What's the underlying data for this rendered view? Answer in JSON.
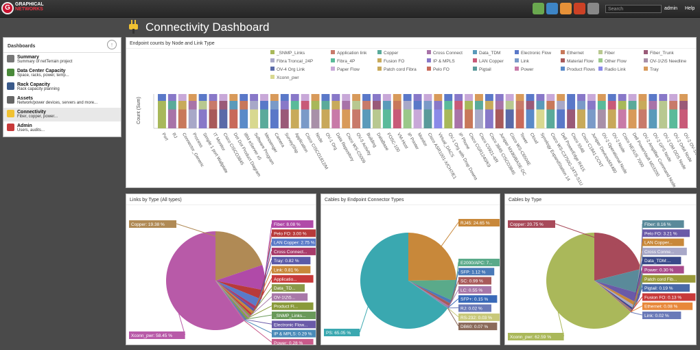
{
  "app": {
    "logo_line1": "GRAPHICAL",
    "logo_line2": "NETWORKS",
    "search_placeholder": "Search",
    "user": "admin",
    "help": "Help"
  },
  "nav": {
    "heading": "Dashboards",
    "items": [
      {
        "title": "Summary",
        "sub": "Summary of netTerrain project",
        "icon": "summary-icon"
      },
      {
        "title": "Data Center Capacity",
        "sub": "Space, racks, power, temp...",
        "icon": "datacenter-icon"
      },
      {
        "title": "Rack Capacity",
        "sub": "Rack capacity planning",
        "icon": "rack-icon"
      },
      {
        "title": "Assets",
        "sub": "Network/power devices, servers and more...",
        "icon": "assets-icon"
      },
      {
        "title": "Connectivity",
        "sub": "Fiber, copper, power...",
        "icon": "connectivity-icon"
      },
      {
        "title": "Admin",
        "sub": "Users, audits...",
        "icon": "admin-icon"
      }
    ]
  },
  "page_title": "Connectivity Dashboard",
  "chart_data": [
    {
      "type": "bar",
      "title": "Endpoint counts by Node and Link Type",
      "ylabel": "Count (Sum)",
      "legend": [
        "_SNMP_Links",
        "Application link",
        "Copper",
        "Cross Connect",
        "Data_TDM",
        "Electronic Flow",
        "Ethernet",
        "Fiber",
        "Fiber_Trunk",
        "Fibra Troncal_24P",
        "Fibra_4P",
        "Fusion FO",
        "IP & MPLS",
        "LAN Copper",
        "Link",
        "Material Flow",
        "Other Flow",
        "OV-1\\2\\5 Needline",
        "OV-4 Org Link",
        "Paper Flow",
        "Patch cord Fibra",
        "Pelo FO",
        "Pigtail",
        "Power",
        "Product Flows",
        "Radio Link",
        "Tray",
        "Xconn_pwr"
      ],
      "legend_colors": [
        "#a8b85a",
        "#c87a6a",
        "#5aaa9a",
        "#a873a8",
        "#5a9aba",
        "#5a78c8",
        "#c8785a",
        "#b8c890",
        "#9a5a78",
        "#a8a8c8",
        "#5aba9a",
        "#c8aa5a",
        "#8878c8",
        "#c85a78",
        "#7a9ac8",
        "#a85a5a",
        "#9ac88a",
        "#a890a8",
        "#5a6aa8",
        "#c8a8d8",
        "#c8a85a",
        "#c86a5a",
        "#5a9a9a",
        "#c87aa8",
        "#5a8ac8",
        "#8a8ae8",
        "#d89a5a",
        "#d8d890"
      ],
      "categories": [
        "Port",
        "RJ",
        "Connector_Generic",
        "Process",
        "Simple 1 port Wallplate",
        "IT Monitor",
        "Cisco CISCO3845",
        "Dot Dot Product Diagram",
        "IBM eServer x5",
        "Software Program",
        "Messenger",
        "Camera",
        "SurveyShip",
        "Application",
        "Cisco CISCO1812/M",
        "Node",
        "OV-1 Org",
        "Data Repository",
        "Cisco WS-C5009",
        "OV-5 Activity",
        "Building",
        "DataBase",
        "FOSC-100",
        "VM-Host",
        "IP Printer",
        "Monitor",
        "Cisco ASR1001-X/CH7/E1",
        "Virtual_DACS",
        "OV-1 Org with Drop Downs",
        "IP Phone",
        "Cisco CGR1240/K9",
        "Cisco C5921-4/R",
        "Cisco 3845 CISCO3845",
        "Juniper MX80/BASE-DC",
        "Cisco WS-C6504E",
        "Tower",
        "Cloud",
        "Synology ExpandStation 14",
        "Cisco WS-C3750G-24TS-S1U",
        "Dell PowerEdge R415",
        "Cisco 5548",
        "Cisco C1841 CCNT",
        "Juniper DevicesMX480",
        "OV-2 Operational Node",
        "OV-2 Node",
        "Cisco NEXUS 7000",
        "Dell PowerVault MD3200",
        "OV-2 Amplifier Command Node",
        "OV-2 GPS Node",
        "OV-2 OM ODS Node",
        "OV-2 Orbit Node",
        "OV-2 OV-1/S Node"
      ]
    },
    {
      "type": "pie",
      "title": "Links by Type (All types)",
      "slices": [
        {
          "label": "Copper: 19.38 %",
          "value": 19.38,
          "color": "#b08a55"
        },
        {
          "label": "Fiber: 8.08 %",
          "value": 8.08,
          "color": "#b04aa8"
        },
        {
          "label": "Pelo FO: 3.00 %",
          "value": 3.0,
          "color": "#b83a3a"
        },
        {
          "label": "LAN Copper: 2.75 %",
          "value": 2.75,
          "color": "#5a7ac8"
        },
        {
          "label": "Cross Connect...",
          "value": 1.0,
          "color": "#a83a6a"
        },
        {
          "label": "Tray: 0.82 %",
          "value": 0.82,
          "color": "#5a5aa8"
        },
        {
          "label": "Link: 0.81 %",
          "value": 0.81,
          "color": "#c8883a"
        },
        {
          "label": "Applicatio...",
          "value": 0.7,
          "color": "#c83a3a"
        },
        {
          "label": "Data_TD...",
          "value": 0.6,
          "color": "#8a9a4a"
        },
        {
          "label": "OV-1\\2\\5...",
          "value": 0.5,
          "color": "#a878a8"
        },
        {
          "label": "Product Fl...",
          "value": 0.45,
          "color": "#8a9a3a"
        },
        {
          "label": "_SNMP_Links...",
          "value": 0.35,
          "color": "#6a9a5a"
        },
        {
          "label": "Electronic Flow...",
          "value": 0.3,
          "color": "#6a5aa8"
        },
        {
          "label": "IP & MPLS: 0.29 %",
          "value": 0.29,
          "color": "#4a8ab8"
        },
        {
          "label": "Power: 0.28 %",
          "value": 0.28,
          "color": "#c85a8a"
        },
        {
          "label": "Xconn_pwr: 58.45 %",
          "value": 58.45,
          "color": "#b85aa8"
        }
      ]
    },
    {
      "type": "pie",
      "title": "Cables by Endpoint Connector Types",
      "slices": [
        {
          "label": "RJ45: 24.65 %",
          "value": 24.65,
          "color": "#c8883a"
        },
        {
          "label": "E2000/APC: 7...",
          "value": 7.0,
          "color": "#5aaa8a"
        },
        {
          "label": "SFP: 1.12 %",
          "value": 1.12,
          "color": "#4a7ab8"
        },
        {
          "label": "SC: 0.99 %",
          "value": 0.99,
          "color": "#a85a5a"
        },
        {
          "label": "LC: 0.55 %",
          "value": 0.55,
          "color": "#a878a8"
        },
        {
          "label": "SFP+: 0.15 %",
          "value": 0.15,
          "color": "#3a6ab8"
        },
        {
          "label": "RJ: 0.02 %",
          "value": 0.02,
          "color": "#6a7ab8"
        },
        {
          "label": "RS-232: 0.03 %",
          "value": 0.03,
          "color": "#c8c87a"
        },
        {
          "label": "DB60: 0.07 %",
          "value": 0.07,
          "color": "#8a6a5a"
        },
        {
          "label": "PS: 65.05 %",
          "value": 65.05,
          "color": "#3aa8b0"
        }
      ]
    },
    {
      "type": "pie",
      "title": "Cables by Type",
      "slices": [
        {
          "label": "Copper: 20.75 %",
          "value": 20.75,
          "color": "#a84a5a"
        },
        {
          "label": "Fiber: 8.16 %",
          "value": 8.16,
          "color": "#5a8a9a"
        },
        {
          "label": "Pelo FO: 3.21 %",
          "value": 3.21,
          "color": "#6a5aa8"
        },
        {
          "label": "LAN Copper...",
          "value": 1.2,
          "color": "#c8883a"
        },
        {
          "label": "Cross Conne...",
          "value": 0.9,
          "color": "#a8a8c8"
        },
        {
          "label": "Data_TDM:...",
          "value": 0.6,
          "color": "#3a4a8a"
        },
        {
          "label": "Power: 0.30 %",
          "value": 0.3,
          "color": "#a84a8a"
        },
        {
          "label": "Patch cord Fib...",
          "value": 0.25,
          "color": "#9a9a3a"
        },
        {
          "label": "Pigtail: 0.19 %",
          "value": 0.19,
          "color": "#4a6aa8"
        },
        {
          "label": "Fusion FO: 0.13 %",
          "value": 0.13,
          "color": "#c83a3a"
        },
        {
          "label": "Ethernet: 0.08 %",
          "value": 0.08,
          "color": "#e8883a"
        },
        {
          "label": "Link: 0.02 %",
          "value": 0.02,
          "color": "#6a7ab8"
        },
        {
          "label": "Xconn_pwr: 62.59 %",
          "value": 62.59,
          "color": "#aab85a"
        }
      ]
    }
  ]
}
